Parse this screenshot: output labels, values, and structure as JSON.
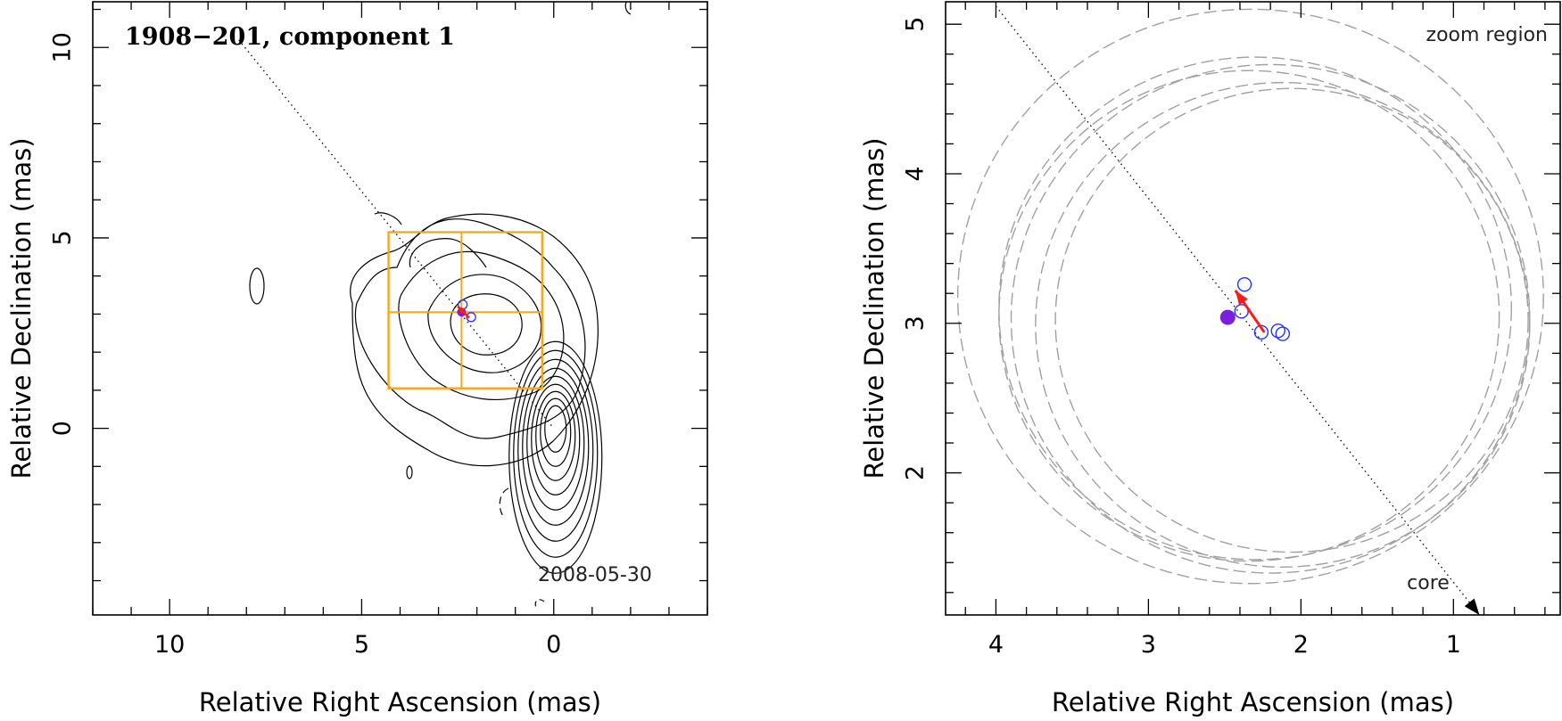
{
  "chart_data": [
    {
      "type": "contour",
      "panel": "left",
      "title": "1908−201, component 1",
      "date": "2008-05-30",
      "xlabel": "Relative Right Ascension (mas)",
      "ylabel": "Relative Declination (mas)",
      "xlim": [
        12.0,
        -4.0
      ],
      "ylim": [
        -4.9,
        11.2
      ],
      "x_ticks": [
        10,
        5,
        0
      ],
      "x_tick_labels": [
        "10",
        "5",
        "0"
      ],
      "y_ticks": [
        0,
        5,
        10
      ],
      "y_tick_labels": [
        "0",
        "5",
        "10"
      ],
      "core": {
        "ra": 0.0,
        "dec": 0.5
      },
      "zoom_box": {
        "ra_min": 0.3,
        "ra_max": 4.3,
        "dec_min": 1.05,
        "dec_max": 5.15
      },
      "crosshair": {
        "ra": 2.4,
        "dec": 3.05
      },
      "jet_axis": {
        "from": [
          8.2,
          10.2
        ],
        "to": [
          0.0,
          0.0
        ]
      },
      "mean_position": {
        "ra": 2.4,
        "dec": 3.05
      },
      "components": [
        {
          "ra": 2.37,
          "dec": 3.25
        },
        {
          "ra": 2.15,
          "dec": 2.92
        }
      ],
      "colors": {
        "contour": "#000000",
        "box": "#f5a81c",
        "arrow": "#ff1a1a",
        "mean": "#7a1fe0",
        "circles": "#2233ff"
      }
    },
    {
      "type": "scatter",
      "panel": "right",
      "title": "zoom region",
      "core_label": "core",
      "xlabel": "Relative Right Ascension (mas)",
      "ylabel": "Relative Declination (mas)",
      "xlim": [
        4.33,
        0.3
      ],
      "ylim": [
        1.05,
        5.15
      ],
      "x_ticks": [
        4,
        3,
        2,
        1
      ],
      "x_tick_labels": [
        "4",
        "3",
        "2",
        "1"
      ],
      "y_ticks": [
        2,
        3,
        4,
        5
      ],
      "y_tick_labels": [
        "2",
        "3",
        "4",
        "5"
      ],
      "filled_point": {
        "ra": 2.48,
        "dec": 3.04
      },
      "open_points": [
        {
          "ra": 2.37,
          "dec": 3.26
        },
        {
          "ra": 2.39,
          "dec": 3.08
        },
        {
          "ra": 2.26,
          "dec": 2.94
        },
        {
          "ra": 2.15,
          "dec": 2.95
        },
        {
          "ra": 2.12,
          "dec": 2.93
        }
      ],
      "motion_arrow": {
        "from": [
          2.24,
          2.94
        ],
        "to": [
          2.43,
          3.22
        ]
      },
      "jet_axis": {
        "from": [
          4.0,
          5.12
        ],
        "to": [
          0.83,
          1.05
        ]
      },
      "error_circles": [
        {
          "ra": 2.33,
          "dec": 3.18,
          "radius": 1.92
        },
        {
          "ra": 2.3,
          "dec": 3.1,
          "radius": 1.68
        },
        {
          "ra": 2.34,
          "dec": 3.05,
          "radius": 1.64
        },
        {
          "ra": 2.2,
          "dec": 3.03,
          "radius": 1.7
        },
        {
          "ra": 2.12,
          "dec": 2.99,
          "radius": 1.62
        },
        {
          "ra": 2.06,
          "dec": 3.02,
          "radius": 1.55
        }
      ],
      "colors": {
        "circle": "#a0a0a0",
        "arrow": "#ff1a1a",
        "filled": "#7a1fe0",
        "open": "#2233ff"
      }
    }
  ]
}
